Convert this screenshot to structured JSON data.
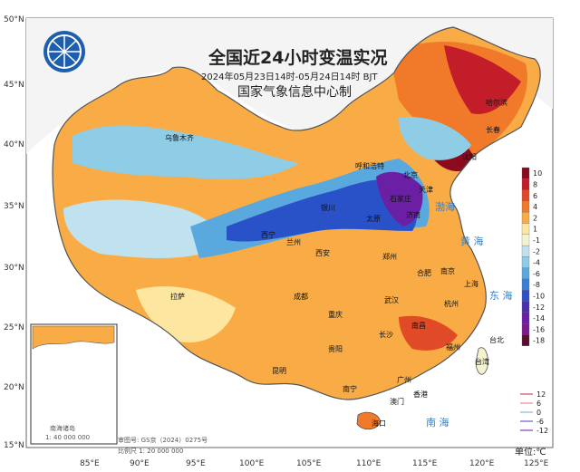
{
  "title": "全国近24小时变温实况",
  "subtitle": "2024年05月23日14时-05月24日14时 BJT",
  "organization": "国家气象信息中心制",
  "unit_label": "单位:℃",
  "map_number": "审图号: GS京（2024）0275号",
  "scale": "比例尺 1: 20 000 000",
  "inset_title": "南海诸岛",
  "inset_scale": "1: 40 000 000",
  "latitude_labels": [
    "50°N",
    "45°N",
    "40°N",
    "35°N",
    "30°N",
    "25°N",
    "20°N",
    "15°N"
  ],
  "longitude_labels": [
    "85°E",
    "90°E",
    "95°E",
    "100°E",
    "105°E",
    "110°E",
    "115°E",
    "120°E",
    "125°E"
  ],
  "legend": {
    "labels": [
      "10",
      "8",
      "6",
      "4",
      "2",
      "1",
      "-1",
      "-2",
      "-4",
      "-6",
      "-8",
      "-10",
      "-12",
      "-14",
      "-16",
      "-18"
    ],
    "colors": [
      "#8b0a1e",
      "#c41d2a",
      "#e04a26",
      "#f07a2a",
      "#f9ac46",
      "#fde7a0",
      "#f5f3cf",
      "#bfe2ee",
      "#8fcce6",
      "#5aa9de",
      "#3a7fd4",
      "#2a52c8",
      "#4a2fb0",
      "#6a1fa4",
      "#7b1a8c",
      "#5a0e2e"
    ]
  },
  "line_legend": {
    "labels": [
      "12",
      "6",
      "0",
      "-6",
      "-12"
    ],
    "colors": [
      "#e0697a",
      "#f0a0b0",
      "#9ec8e6",
      "#8a7ad6",
      "#a060c0"
    ]
  },
  "cities": [
    {
      "name": "乌鲁木齐"
    },
    {
      "name": "呼和浩特"
    },
    {
      "name": "哈尔滨"
    },
    {
      "name": "长春"
    },
    {
      "name": "沈阳"
    },
    {
      "name": "北京"
    },
    {
      "name": "天津"
    },
    {
      "name": "石家庄"
    },
    {
      "name": "太原"
    },
    {
      "name": "济南"
    },
    {
      "name": "银川"
    },
    {
      "name": "兰州"
    },
    {
      "name": "西宁"
    },
    {
      "name": "西安"
    },
    {
      "name": "郑州"
    },
    {
      "name": "合肥"
    },
    {
      "name": "南京"
    },
    {
      "name": "上海"
    },
    {
      "name": "杭州"
    },
    {
      "name": "武汉"
    },
    {
      "name": "成都"
    },
    {
      "name": "重庆"
    },
    {
      "name": "拉萨"
    },
    {
      "name": "长沙"
    },
    {
      "name": "南昌"
    },
    {
      "name": "福州"
    },
    {
      "name": "贵阳"
    },
    {
      "name": "昆明"
    },
    {
      "name": "南宁"
    },
    {
      "name": "广州"
    },
    {
      "name": "香港"
    },
    {
      "name": "澳门"
    },
    {
      "name": "海口"
    },
    {
      "name": "台北"
    },
    {
      "name": "台湾"
    }
  ],
  "seas": [
    "渤海",
    "黄 海",
    "东 海",
    "南 海"
  ]
}
